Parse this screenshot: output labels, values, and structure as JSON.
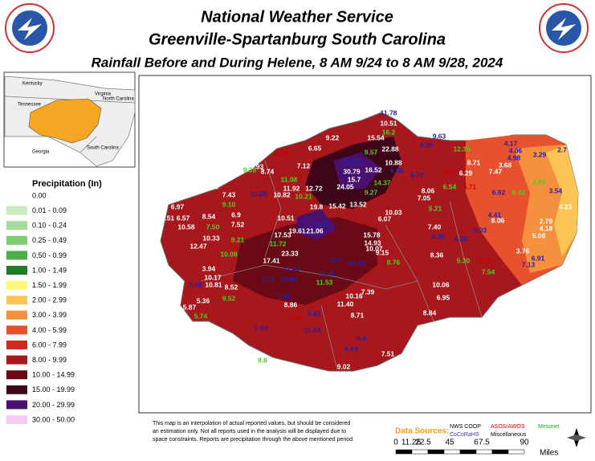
{
  "header": {
    "title_1": "National Weather Service",
    "title_2": "Greenville-Spartanburg South Carolina",
    "title_3": "Rainfall Before and During Helene, 8 AM 9/24 to 8 AM 9/28, 2024"
  },
  "inset": {
    "labels": [
      "Kentucky",
      "Virginia",
      "Tennessee",
      "North Carolina",
      "Georgia",
      "South Carolina"
    ]
  },
  "legend": {
    "title": "Precipitation (In)",
    "items": [
      {
        "label": "0.00",
        "color": "#ffffff"
      },
      {
        "label": "0.01 - 0.09",
        "color": "#c8ecc0"
      },
      {
        "label": "0.10 - 0.24",
        "color": "#a6dc9a"
      },
      {
        "label": "0.25 - 0.49",
        "color": "#7fcc6f"
      },
      {
        "label": "0.50 - 0.99",
        "color": "#4fae4a"
      },
      {
        "label": "1.00 - 1.49",
        "color": "#1f7a2a"
      },
      {
        "label": "1.50 - 1.99",
        "color": "#fdf87a"
      },
      {
        "label": "2.00 - 2.99",
        "color": "#fbc454"
      },
      {
        "label": "3.00 - 3.99",
        "color": "#f5913e"
      },
      {
        "label": "4.00 - 5.99",
        "color": "#e8512e"
      },
      {
        "label": "6.00 - 7.99",
        "color": "#cf2a22"
      },
      {
        "label": "8.00 - 9.99",
        "color": "#a8171c"
      },
      {
        "label": "10.00 - 14.99",
        "color": "#6a0a16"
      },
      {
        "label": "15.00 - 19.99",
        "color": "#3e0418"
      },
      {
        "label": "20.00 - 29.99",
        "color": "#4a1070"
      },
      {
        "label": "30.00 - 50.00",
        "color": "#f7c8f2"
      }
    ]
  },
  "stations": [
    "11.78",
    "10.51",
    "16.2",
    "9.22",
    "15.54",
    "8.39",
    "9.63",
    "6.65",
    "6.03",
    "9.57",
    "22.88",
    "12.35",
    "4.17",
    "4.06",
    "3.29",
    "2.7",
    "7.12",
    "24.12",
    "10.88",
    "8.71",
    "4.98",
    "3.68",
    "9.93",
    "8.74",
    "9.38",
    "30.79",
    "16.52",
    "9.88",
    "9.70",
    "6.51",
    "6.29",
    "7.47",
    "11.08",
    "15.7",
    "24.05",
    "14.37",
    "3.88",
    "11.92",
    "12.72",
    "10.21",
    "10.82",
    "6.54",
    "6.71",
    "9.27",
    "8.06",
    "6.92",
    "6.42",
    "3.54",
    "9.8",
    "7.43",
    "10.69",
    "15.42",
    "13.52",
    "19.8",
    "6.97",
    "8.54",
    "9.10",
    "10.03",
    "6.07",
    "7.05",
    "5.21",
    "8.06",
    "4.23",
    "6.51",
    "6.57",
    "10.58",
    "7.50",
    "7.52",
    "6.9",
    "10.51",
    "4.41",
    "2.79",
    "10.33",
    "9.21",
    "17.53",
    "19.61",
    "21.06",
    "16.83",
    "15.78",
    "4.18",
    "5.08",
    "12.47",
    "11.72",
    "14.93",
    "7.40",
    "8.35",
    "6.06",
    "9.03",
    "3.76",
    "10.08",
    "17.41",
    "23.33",
    "10.07",
    "9.15",
    "8.36",
    "5.30",
    "5.39",
    "6.91",
    "3.94",
    "11.43",
    "16.7",
    "12.51",
    "8.76",
    "7.54",
    "7.13",
    "2.68",
    "10.17",
    "10.81",
    "11.4",
    "12.85",
    "11.46",
    "11.53",
    "8.52",
    "10.06",
    "5.36",
    "9.52",
    "7.95",
    "10.16",
    "7.39",
    "6.95",
    "5.87",
    "8.86",
    "11.40",
    "8.84",
    "5.88",
    "5.74",
    "7.48",
    "9.42",
    "8.71",
    "7.94",
    "11.54",
    "8.4",
    "9.43",
    "8.8",
    "7.51",
    "9.02",
    "14.74"
  ],
  "notes": {
    "disclaimer": [
      "This map is an interpolation of actual reported values, but should be considered",
      "an estimation only. Not all reports used in the analysis will be displayed due to",
      "space constraints. Reports are precipitation through the above mentioned period."
    ],
    "sources_label": "Data Sources:",
    "sources": [
      "NWS COOP",
      "ASOS/AWOS",
      "Mesonet",
      "CoCoRaHS",
      "Miscellaneous"
    ]
  },
  "scale": {
    "ticks": [
      "0",
      "11.25",
      "22.5",
      "45",
      "67.5",
      "90"
    ],
    "unit": "Miles"
  }
}
